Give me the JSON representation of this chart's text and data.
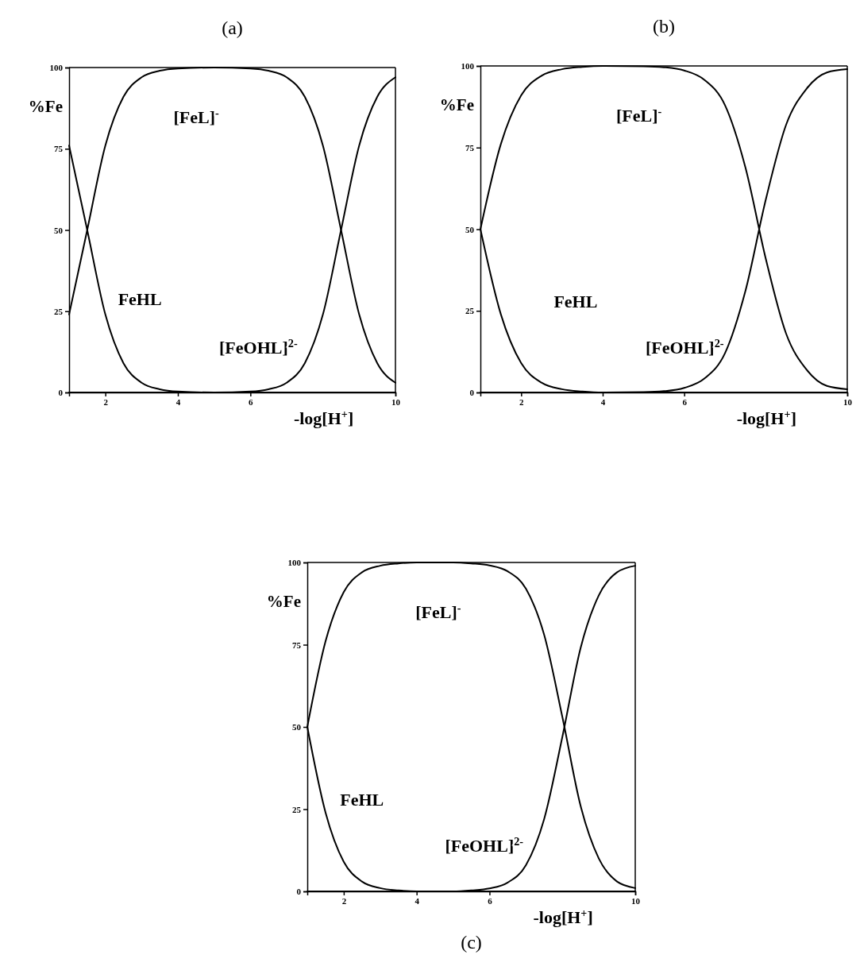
{
  "chart_data": [
    {
      "type": "line",
      "title": "(a)",
      "xlabel": "-log[H$^{+}$]",
      "ylabel": "%Fe",
      "xlim": [
        1,
        10
      ],
      "ylim": [
        0,
        100
      ],
      "xticks": [
        2,
        4,
        6,
        10
      ],
      "yticks": [
        0,
        25,
        50,
        75,
        100
      ],
      "grid": false,
      "marker": "none",
      "line_style": "solid",
      "series": [
        {
          "name": "FeHL",
          "color": "#000000",
          "x": [
            1,
            1.5,
            2,
            2.5,
            3,
            3.5,
            4,
            5,
            6,
            7,
            8,
            9,
            10
          ],
          "values": [
            76,
            50,
            24,
            9,
            3,
            1,
            0.3,
            0,
            0,
            0,
            0,
            0,
            0
          ]
        },
        {
          "name": "[FeL]$^{-}$",
          "color": "#000000",
          "x": [
            1,
            1.5,
            2,
            2.5,
            3,
            3.5,
            4,
            5,
            6,
            6.5,
            7,
            7.5,
            8,
            8.5,
            9,
            9.5,
            10
          ],
          "values": [
            24,
            50,
            76,
            91,
            97,
            99,
            99.7,
            100,
            99.7,
            99,
            97,
            91,
            76,
            50,
            24,
            9,
            3
          ]
        },
        {
          "name": "[FeOHL]$^{2-}$",
          "color": "#000000",
          "x": [
            1,
            2,
            3,
            4,
            5,
            6,
            6.5,
            7,
            7.5,
            8,
            8.5,
            9,
            9.5,
            10
          ],
          "values": [
            0,
            0,
            0,
            0,
            0,
            0.3,
            1,
            3,
            9,
            24,
            50,
            76,
            91,
            97
          ]
        }
      ]
    },
    {
      "type": "line",
      "title": "(b)",
      "xlabel": "-log[H$^{+}$]",
      "ylabel": "%Fe",
      "xlim": [
        1,
        10
      ],
      "ylim": [
        0,
        100
      ],
      "xticks": [
        2,
        4,
        6,
        10
      ],
      "yticks": [
        0,
        25,
        50,
        75,
        100
      ],
      "grid": false,
      "marker": "none",
      "line_style": "solid",
      "series": [
        {
          "name": "FeHL",
          "color": "#000000",
          "x": [
            1,
            1.5,
            2,
            2.5,
            3,
            3.5,
            4,
            5,
            6,
            7,
            8,
            9,
            10
          ],
          "values": [
            50,
            24,
            9,
            3,
            1,
            0.3,
            0,
            0,
            0,
            0,
            0,
            0,
            0
          ]
        },
        {
          "name": "[FeL]$^{-}$",
          "color": "#000000",
          "x": [
            1,
            1.5,
            2,
            2.5,
            3,
            3.5,
            4,
            5,
            5.5,
            6,
            6.5,
            7,
            7.5,
            8,
            8.5,
            9,
            9.5,
            10
          ],
          "values": [
            50,
            76,
            91,
            97,
            99,
            99.7,
            100,
            99.9,
            99.6,
            98.6,
            95.7,
            88,
            69,
            41,
            18,
            7,
            2,
            1
          ]
        },
        {
          "name": "[FeOHL]$^{2-}$",
          "color": "#000000",
          "x": [
            1,
            2,
            3,
            4,
            5,
            5.5,
            6,
            6.5,
            7,
            7.5,
            8,
            8.5,
            9,
            9.5,
            10
          ],
          "values": [
            0,
            0,
            0,
            0,
            0.1,
            0.4,
            1.4,
            4.3,
            12,
            31,
            59,
            82,
            93,
            98,
            99
          ]
        }
      ]
    },
    {
      "type": "line",
      "title": "(c)",
      "xlabel": "-log[H$^{+}$]",
      "ylabel": "%Fe",
      "xlim": [
        1,
        10
      ],
      "ylim": [
        0,
        100
      ],
      "xticks": [
        2,
        4,
        6,
        10
      ],
      "yticks": [
        0,
        25,
        50,
        75,
        100
      ],
      "grid": false,
      "marker": "none",
      "line_style": "solid",
      "series": [
        {
          "name": "FeHL",
          "color": "#000000",
          "x": [
            1,
            1.5,
            2,
            2.5,
            3,
            3.5,
            4,
            5,
            6,
            7,
            8,
            9,
            10
          ],
          "values": [
            50,
            24,
            9,
            3,
            1,
            0.3,
            0,
            0,
            0,
            0,
            0,
            0,
            0
          ]
        },
        {
          "name": "[FeL]$^{-}$",
          "color": "#000000",
          "x": [
            1,
            1.5,
            2,
            2.5,
            3,
            3.5,
            4,
            5,
            5.5,
            6,
            6.5,
            7,
            7.5,
            8,
            8.5,
            9,
            9.5,
            10
          ],
          "values": [
            50,
            76,
            91,
            97,
            99,
            99.7,
            100,
            100,
            99.7,
            99.1,
            97.3,
            92,
            78,
            53,
            26,
            10,
            3,
            1
          ]
        },
        {
          "name": "[FeOHL]$^{2-}$",
          "color": "#000000",
          "x": [
            1,
            2,
            3,
            4,
            5,
            5.5,
            6,
            6.5,
            7,
            7.5,
            8,
            8.5,
            9,
            9.5,
            10
          ],
          "values": [
            0,
            0,
            0,
            0,
            0,
            0.3,
            0.9,
            2.7,
            8,
            22,
            47,
            74,
            90,
            97,
            99
          ]
        }
      ]
    }
  ]
}
